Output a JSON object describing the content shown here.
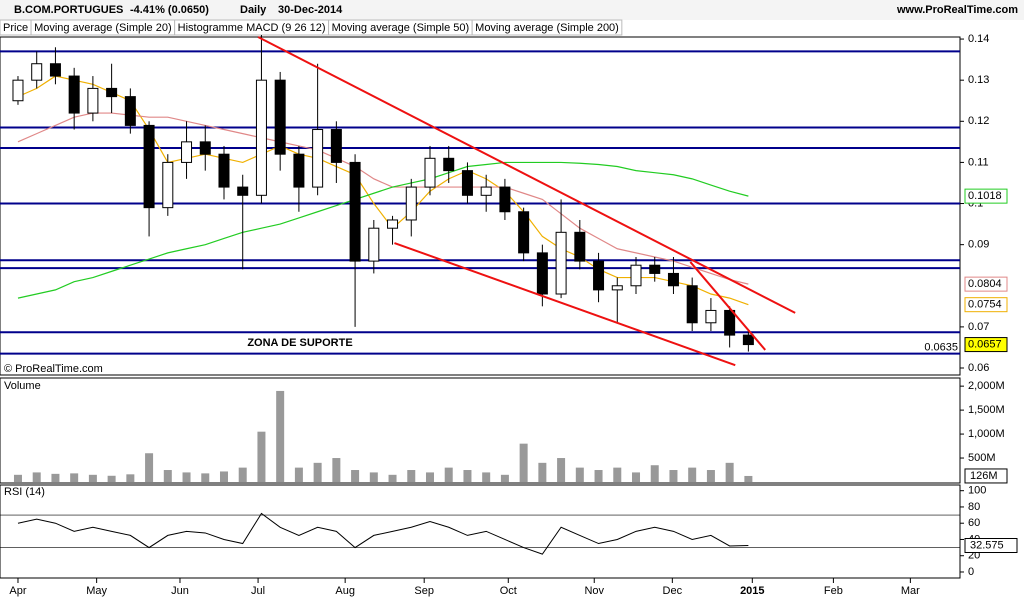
{
  "header": {
    "symbol": "B.COM.PORTUGUES",
    "change": "-4.41% (0.0650)",
    "period": "Daily",
    "date": "30-Dec-2014",
    "site": "www.ProRealTime.com",
    "copyright": "© ProRealTime.com"
  },
  "legend": [
    "Price",
    "Moving average (Simple 20)",
    "Histogramme MACD (9 26 12)",
    "Moving average (Simple 50)",
    "Moving average (Simple 200)"
  ],
  "chart_data": [
    {
      "type": "candlestick",
      "xlim": [
        -0.96,
        50.3
      ],
      "ylim": [
        0.0583,
        0.1405
      ],
      "yticks": [
        0.06,
        0.07,
        0.09,
        0.1,
        0.11,
        0.12,
        0.13,
        0.14
      ],
      "x": [
        0,
        1,
        2,
        3,
        4,
        5,
        6,
        7,
        8,
        9,
        10,
        11,
        12,
        13,
        14,
        15,
        16,
        17,
        18,
        19,
        20,
        21,
        22,
        23,
        24,
        25,
        26,
        27,
        28,
        29,
        30,
        31,
        32,
        33,
        34,
        35,
        36,
        37,
        38,
        39
      ],
      "open": [
        0.125,
        0.13,
        0.134,
        0.131,
        0.122,
        0.128,
        0.126,
        0.119,
        0.099,
        0.11,
        0.115,
        0.112,
        0.104,
        0.102,
        0.13,
        0.112,
        0.104,
        0.118,
        0.11,
        0.086,
        0.094,
        0.096,
        0.104,
        0.111,
        0.108,
        0.102,
        0.104,
        0.098,
        0.088,
        0.078,
        0.093,
        0.086,
        0.079,
        0.08,
        0.085,
        0.083,
        0.08,
        0.071,
        0.074,
        0.068
      ],
      "high": [
        0.131,
        0.137,
        0.138,
        0.133,
        0.131,
        0.134,
        0.128,
        0.12,
        0.112,
        0.12,
        0.119,
        0.114,
        0.107,
        0.141,
        0.132,
        0.114,
        0.134,
        0.12,
        0.112,
        0.096,
        0.097,
        0.106,
        0.114,
        0.114,
        0.11,
        0.107,
        0.106,
        0.099,
        0.09,
        0.101,
        0.096,
        0.088,
        0.082,
        0.087,
        0.087,
        0.087,
        0.082,
        0.077,
        0.075,
        0.069
      ],
      "low": [
        0.124,
        0.128,
        0.129,
        0.118,
        0.12,
        0.122,
        0.117,
        0.092,
        0.097,
        0.106,
        0.108,
        0.101,
        0.084,
        0.1,
        0.108,
        0.098,
        0.102,
        0.105,
        0.07,
        0.083,
        0.09,
        0.092,
        0.102,
        0.105,
        0.1,
        0.098,
        0.096,
        0.086,
        0.075,
        0.077,
        0.084,
        0.076,
        0.071,
        0.078,
        0.081,
        0.078,
        0.069,
        0.069,
        0.065,
        0.064
      ],
      "close": [
        0.13,
        0.134,
        0.131,
        0.122,
        0.128,
        0.126,
        0.119,
        0.099,
        0.11,
        0.115,
        0.112,
        0.104,
        0.102,
        0.13,
        0.112,
        0.104,
        0.118,
        0.11,
        0.086,
        0.094,
        0.096,
        0.104,
        0.111,
        0.108,
        0.102,
        0.104,
        0.098,
        0.088,
        0.078,
        0.093,
        0.086,
        0.079,
        0.08,
        0.085,
        0.083,
        0.08,
        0.071,
        0.074,
        0.068,
        0.0657
      ],
      "series": [
        {
          "name": "Moving average (Simple 20)",
          "color": "#f0b000",
          "values": [
            0.126,
            0.128,
            0.131,
            0.13,
            0.129,
            0.127,
            0.125,
            0.118,
            0.11,
            0.111,
            0.112,
            0.111,
            0.11,
            0.112,
            0.114,
            0.112,
            0.111,
            0.109,
            0.107,
            0.1,
            0.094,
            0.098,
            0.103,
            0.106,
            0.108,
            0.106,
            0.103,
            0.098,
            0.092,
            0.089,
            0.087,
            0.084,
            0.082,
            0.082,
            0.082,
            0.081,
            0.08,
            0.078,
            0.077,
            0.0754
          ]
        },
        {
          "name": "Moving average (Simple 50)",
          "color": "#e08888",
          "values": [
            0.115,
            0.117,
            0.119,
            0.121,
            0.122,
            0.122,
            0.1215,
            0.121,
            0.121,
            0.12,
            0.119,
            0.118,
            0.117,
            0.116,
            0.115,
            0.114,
            0.113,
            0.111,
            0.109,
            0.106,
            0.104,
            0.104,
            0.104,
            0.104,
            0.104,
            0.104,
            0.104,
            0.1025,
            0.101,
            0.0975,
            0.094,
            0.0915,
            0.089,
            0.088,
            0.087,
            0.086,
            0.0845,
            0.083,
            0.0815,
            0.0804
          ]
        },
        {
          "name": "Moving average (Simple 200)",
          "color": "#22cc22",
          "values": [
            0.077,
            0.078,
            0.079,
            0.081,
            0.082,
            0.0835,
            0.085,
            0.0865,
            0.088,
            0.089,
            0.09,
            0.0915,
            0.093,
            0.094,
            0.095,
            0.0965,
            0.098,
            0.0995,
            0.101,
            0.1025,
            0.104,
            0.105,
            0.106,
            0.1075,
            0.109,
            0.1095,
            0.11,
            0.11,
            0.11,
            0.11,
            0.1098,
            0.1095,
            0.109,
            0.108,
            0.1075,
            0.107,
            0.106,
            0.1045,
            0.103,
            0.1018
          ]
        }
      ],
      "levels": [
        0.137,
        0.1185,
        0.1135,
        0.1,
        0.0862,
        0.0843,
        0.0687,
        0.0635
      ],
      "level_label": "0.0635",
      "zone_label": "ZONA DE SUPORTE",
      "trendlines": [
        {
          "x": [
            12.82,
            41.5
          ],
          "y": [
            0.1405,
            0.0734
          ]
        },
        {
          "x": [
            35.9,
            39.9
          ],
          "y": [
            0.0858,
            0.0644
          ]
        },
        {
          "x": [
            20.1,
            38.3
          ],
          "y": [
            0.0904,
            0.0607
          ]
        }
      ]
    },
    {
      "type": "bar",
      "title": "Volume",
      "xlim": [
        -0.96,
        50.3
      ],
      "ylim": [
        0,
        2170
      ],
      "yticks": [
        {
          "value": 500,
          "label": "500M"
        },
        {
          "value": 1000,
          "label": "1,000M"
        },
        {
          "value": 1500,
          "label": "1,500M"
        },
        {
          "value": 2000,
          "label": "2,000M"
        }
      ],
      "x": [
        0,
        1,
        2,
        3,
        4,
        5,
        6,
        7,
        8,
        9,
        10,
        11,
        12,
        13,
        14,
        15,
        16,
        17,
        18,
        19,
        20,
        21,
        22,
        23,
        24,
        25,
        26,
        27,
        28,
        29,
        30,
        31,
        32,
        33,
        34,
        35,
        36,
        37,
        38,
        39
      ],
      "values": [
        150,
        200,
        170,
        180,
        150,
        130,
        160,
        600,
        250,
        200,
        180,
        220,
        300,
        1050,
        1900,
        300,
        400,
        500,
        250,
        200,
        150,
        250,
        200,
        300,
        250,
        200,
        150,
        800,
        400,
        500,
        300,
        250,
        300,
        200,
        350,
        250,
        300,
        250,
        400,
        126
      ],
      "value_labels": [
        null,
        null,
        null,
        null,
        null,
        null,
        null,
        null,
        null,
        null,
        null,
        null,
        null,
        null,
        null,
        null,
        null,
        null,
        null,
        null,
        null,
        null,
        null,
        null,
        null,
        null,
        null,
        null,
        null,
        null,
        null,
        null,
        null,
        null,
        null,
        null,
        null,
        null,
        null,
        "126M"
      ]
    },
    {
      "type": "line",
      "title": "RSI (14)",
      "xlim": [
        -0.96,
        50.3
      ],
      "ylim": [
        -7.4,
        107
      ],
      "yticks": [
        0,
        20,
        40,
        60,
        80,
        100
      ],
      "levels": [
        70,
        30
      ],
      "xticks": [
        {
          "value": 0,
          "label": "Apr"
        },
        {
          "value": 4.2,
          "label": "May"
        },
        {
          "value": 8.65,
          "label": "Jun"
        },
        {
          "value": 12.82,
          "label": "Jul"
        },
        {
          "value": 17.47,
          "label": "Aug"
        },
        {
          "value": 21.69,
          "label": "Sep"
        },
        {
          "value": 26.18,
          "label": "Oct"
        },
        {
          "value": 30.77,
          "label": "Nov"
        },
        {
          "value": 34.94,
          "label": "Dec"
        },
        {
          "value": 39.21,
          "label": "2015"
        },
        {
          "value": 43.54,
          "label": "Feb"
        },
        {
          "value": 47.65,
          "label": "Mar"
        }
      ],
      "x": [
        0,
        1,
        2,
        3,
        4,
        5,
        6,
        7,
        8,
        9,
        10,
        11,
        12,
        13,
        14,
        15,
        16,
        17,
        18,
        19,
        20,
        21,
        22,
        23,
        24,
        25,
        26,
        27,
        28,
        29,
        30,
        31,
        32,
        33,
        34,
        35,
        36,
        37,
        38,
        39
      ],
      "series": [
        {
          "name": "RSI (14)",
          "color": "#000000",
          "values": [
            60,
            65,
            60,
            50,
            55,
            50,
            45,
            30,
            45,
            50,
            48,
            40,
            35,
            72,
            55,
            45,
            55,
            50,
            30,
            45,
            50,
            55,
            62,
            55,
            45,
            50,
            40,
            30,
            22,
            55,
            45,
            35,
            40,
            50,
            55,
            50,
            40,
            45,
            32,
            32.575
          ]
        }
      ]
    }
  ]
}
